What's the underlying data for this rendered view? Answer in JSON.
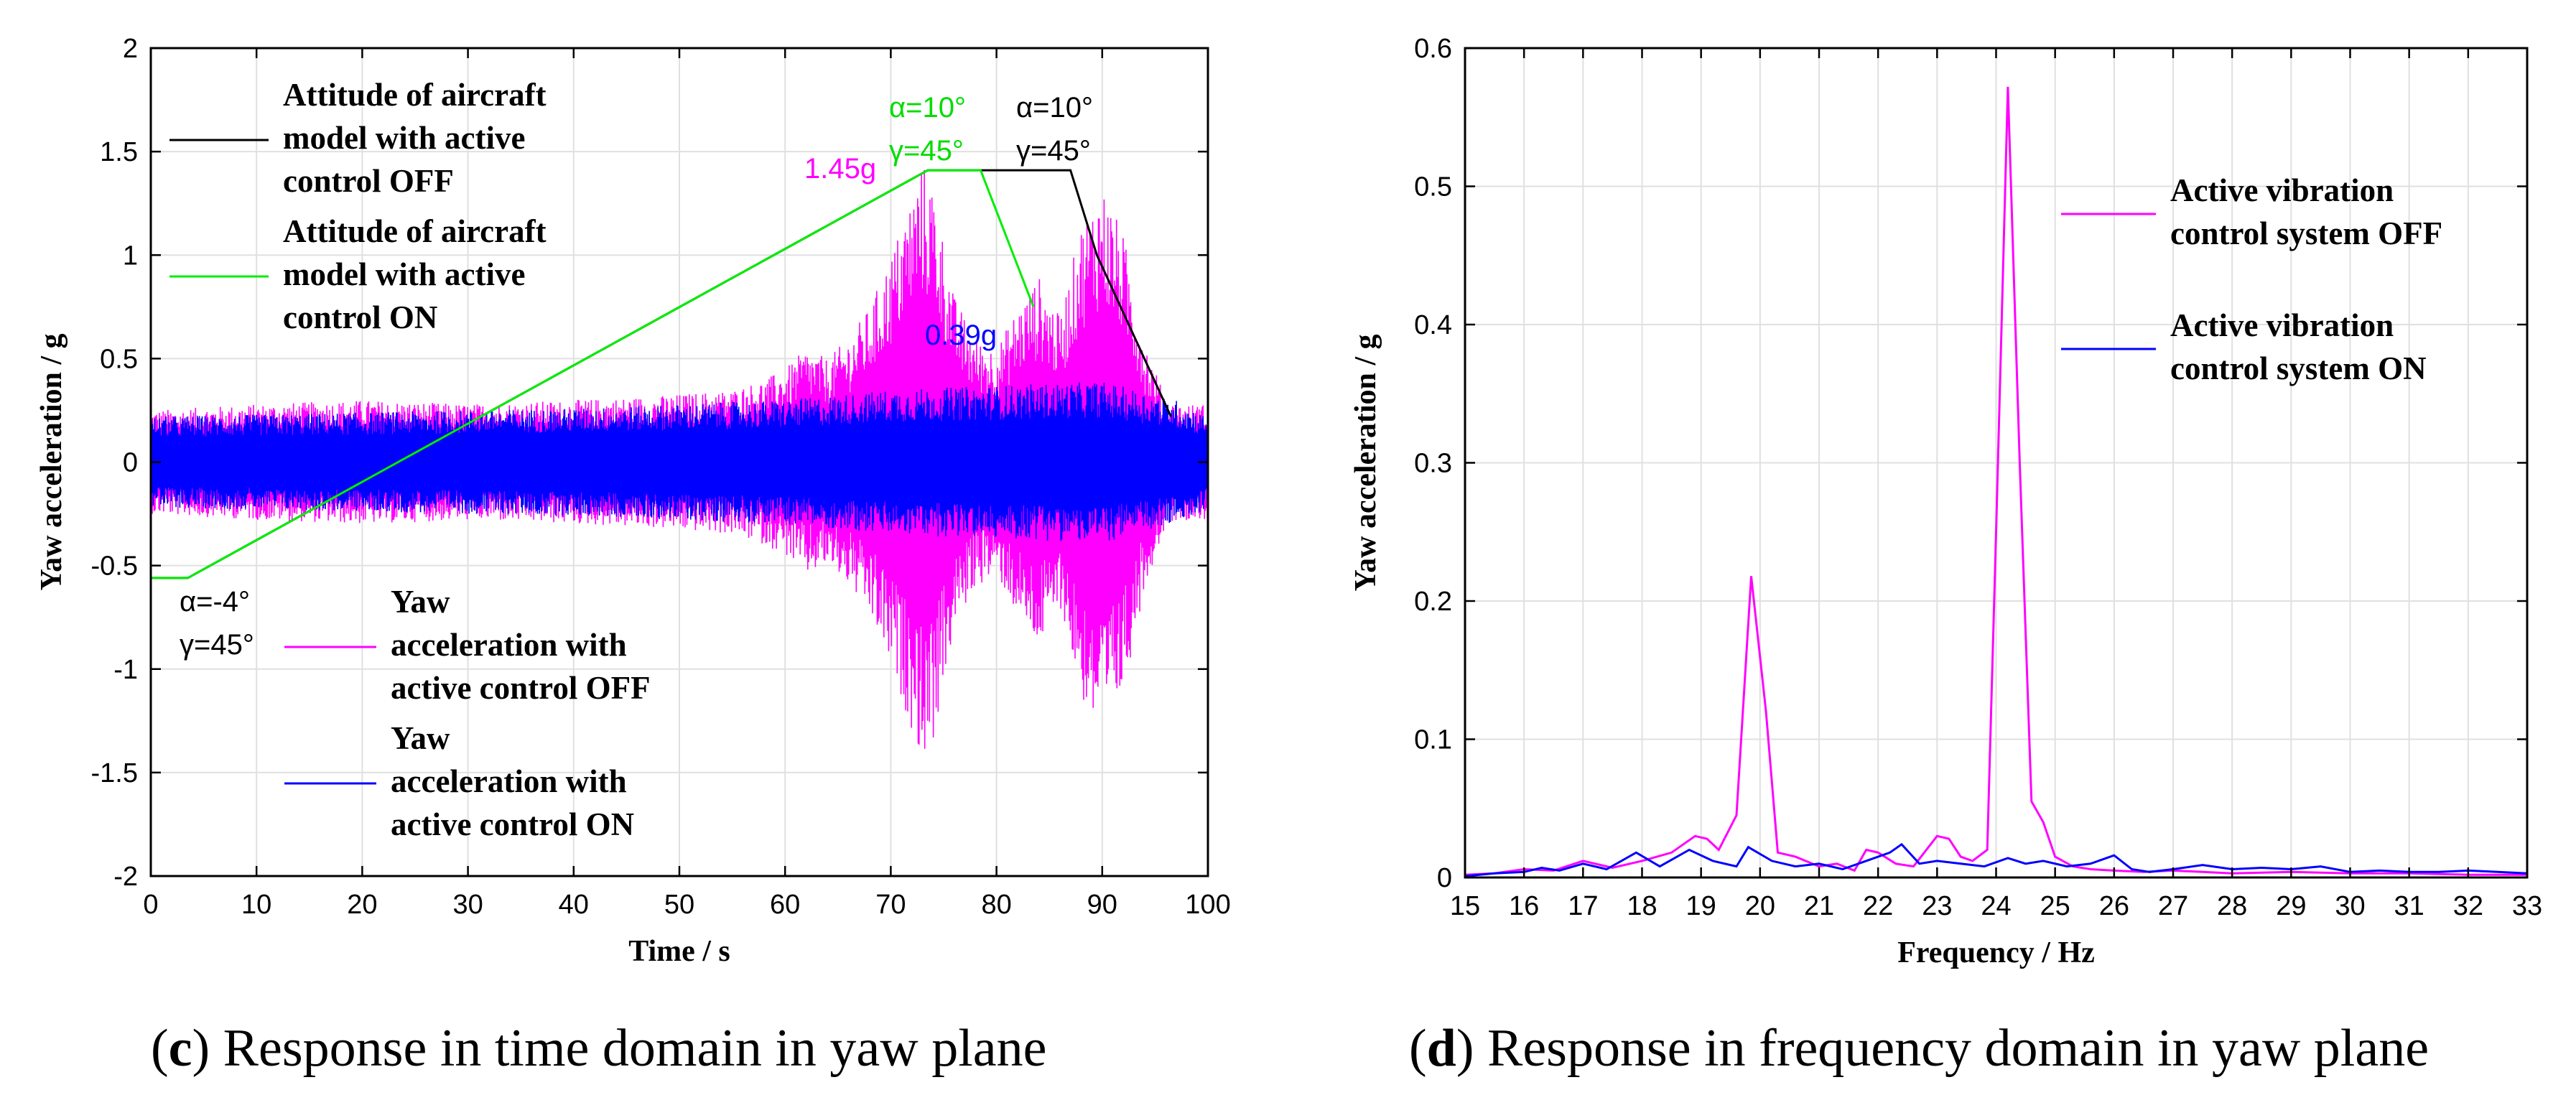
{
  "chart_data": [
    {
      "id": "c",
      "type": "line",
      "panel_label": "c",
      "caption": "Response in time domain in yaw plane",
      "xlabel": "Time / s",
      "ylabel": "Yaw acceleration / g",
      "xlim": [
        0,
        100
      ],
      "ylim": [
        -2,
        2
      ],
      "xticks": [
        0,
        10,
        20,
        30,
        40,
        50,
        60,
        70,
        80,
        90,
        100
      ],
      "yticks": [
        -2,
        -1.5,
        -1,
        -0.5,
        0,
        0.5,
        1,
        1.5,
        2
      ],
      "grid": true,
      "series": [
        {
          "name": "Yaw acceleration with active control OFF",
          "legend_lines": [
            "Yaw",
            "acceleration with",
            "active control OFF"
          ],
          "color": "#ff00ff",
          "kind": "vibration_envelope",
          "envelope_x": [
            0,
            10,
            20,
            30,
            40,
            48,
            55,
            58,
            60,
            62,
            64,
            66,
            68,
            70,
            72,
            73,
            74,
            76,
            78,
            80,
            82,
            84,
            86,
            88,
            90,
            92,
            94,
            96,
            97,
            100
          ],
          "envelope_y": [
            0.25,
            0.28,
            0.3,
            0.28,
            0.3,
            0.32,
            0.35,
            0.4,
            0.45,
            0.55,
            0.5,
            0.6,
            0.75,
            1.0,
            1.3,
            1.45,
            1.35,
            0.8,
            0.6,
            0.55,
            0.75,
            0.9,
            0.7,
            1.15,
            1.35,
            1.1,
            0.6,
            0.3,
            0.28,
            0.28
          ]
        },
        {
          "name": "Yaw acceleration with active control ON",
          "legend_lines": [
            "Yaw",
            "acceleration with",
            "active control ON"
          ],
          "color": "#0000ff",
          "kind": "vibration_envelope",
          "envelope_x": [
            0,
            20,
            40,
            60,
            70,
            80,
            90,
            97,
            100
          ],
          "envelope_y": [
            0.22,
            0.24,
            0.26,
            0.3,
            0.35,
            0.37,
            0.39,
            0.3,
            0.22
          ]
        },
        {
          "name": "Attitude of aircraft model with active control OFF",
          "legend_lines": [
            "Attitude of aircraft",
            "model with active",
            "control OFF"
          ],
          "color": "#000000",
          "x": [
            0,
            3.5,
            73.5,
            87,
            89.5,
            96.5
          ],
          "y": [
            -0.56,
            -0.56,
            1.41,
            1.41,
            1.0,
            0.22
          ]
        },
        {
          "name": "Attitude of aircraft model with active control ON",
          "legend_lines": [
            "Attitude of aircraft",
            "model with active",
            "control ON"
          ],
          "color": "#00ee00",
          "x": [
            0,
            3.5,
            73.5,
            78.5,
            83.5
          ],
          "y": [
            -0.56,
            -0.56,
            1.41,
            1.41,
            0.75
          ]
        }
      ],
      "annotations": [
        {
          "text": "α=10°",
          "color": "#00dd00"
        },
        {
          "text": "γ=45°",
          "color": "#00dd00"
        },
        {
          "text": "α=10°",
          "color": "#000000"
        },
        {
          "text": "γ=45°",
          "color": "#000000"
        },
        {
          "text": "1.45g",
          "color": "#ff00ff"
        },
        {
          "text": "0.39g",
          "color": "#0000ff"
        },
        {
          "text": "α=-4°",
          "color": "#000000"
        },
        {
          "text": "γ=45°",
          "color": "#000000"
        }
      ]
    },
    {
      "id": "d",
      "type": "line",
      "panel_label": "d",
      "caption": "Response in frequency domain in yaw plane",
      "xlabel": "Frequency / Hz",
      "ylabel": "Yaw acceleration / g",
      "xlim": [
        15,
        33
      ],
      "ylim": [
        0,
        0.6
      ],
      "xticks": [
        15,
        16,
        17,
        18,
        19,
        20,
        21,
        22,
        23,
        24,
        25,
        26,
        27,
        28,
        29,
        30,
        31,
        32,
        33
      ],
      "yticks": [
        0,
        0.1,
        0.2,
        0.3,
        0.4,
        0.5,
        0.6
      ],
      "grid": true,
      "series": [
        {
          "name": "Active vibration control system OFF",
          "legend_lines": [
            "Active vibration",
            "control system OFF"
          ],
          "color": "#ff00ff",
          "x": [
            15,
            15.5,
            16,
            16.5,
            17,
            17.5,
            18,
            18.5,
            18.9,
            19.1,
            19.3,
            19.6,
            19.85,
            20.1,
            20.3,
            20.6,
            21,
            21.3,
            21.6,
            21.8,
            22,
            22.3,
            22.6,
            23,
            23.2,
            23.4,
            23.6,
            23.85,
            24.0,
            24.2,
            24.4,
            24.6,
            24.8,
            25.0,
            25.3,
            25.6,
            26,
            26.5,
            27,
            27.5,
            28,
            29,
            30,
            31,
            32,
            33
          ],
          "y": [
            0.002,
            0.003,
            0.006,
            0.005,
            0.012,
            0.007,
            0.012,
            0.018,
            0.03,
            0.028,
            0.02,
            0.045,
            0.218,
            0.12,
            0.018,
            0.015,
            0.008,
            0.01,
            0.005,
            0.02,
            0.018,
            0.01,
            0.008,
            0.03,
            0.028,
            0.015,
            0.012,
            0.02,
            0.25,
            0.572,
            0.3,
            0.055,
            0.04,
            0.015,
            0.008,
            0.006,
            0.005,
            0.004,
            0.005,
            0.004,
            0.003,
            0.004,
            0.003,
            0.003,
            0.002,
            0.002
          ]
        },
        {
          "name": "Active vibration control system ON",
          "legend_lines": [
            "Active vibration",
            "control system ON"
          ],
          "color": "#0000ff",
          "x": [
            15,
            15.5,
            16,
            16.3,
            16.6,
            17,
            17.4,
            17.9,
            18.3,
            18.8,
            19.2,
            19.6,
            19.8,
            20.2,
            20.6,
            21,
            21.4,
            21.8,
            22.2,
            22.4,
            22.7,
            23,
            23.4,
            23.8,
            24.2,
            24.5,
            24.8,
            25.2,
            25.6,
            26,
            26.3,
            26.6,
            27,
            27.5,
            28,
            28.5,
            29,
            29.5,
            30,
            30.5,
            31,
            31.5,
            32,
            32.5,
            33
          ],
          "y": [
            0.001,
            0.003,
            0.004,
            0.007,
            0.005,
            0.01,
            0.006,
            0.018,
            0.008,
            0.02,
            0.012,
            0.008,
            0.022,
            0.012,
            0.008,
            0.01,
            0.006,
            0.012,
            0.018,
            0.024,
            0.01,
            0.012,
            0.01,
            0.008,
            0.014,
            0.01,
            0.012,
            0.008,
            0.01,
            0.016,
            0.006,
            0.004,
            0.006,
            0.009,
            0.006,
            0.007,
            0.006,
            0.008,
            0.004,
            0.005,
            0.004,
            0.004,
            0.005,
            0.004,
            0.003
          ]
        }
      ],
      "annotations": []
    }
  ]
}
